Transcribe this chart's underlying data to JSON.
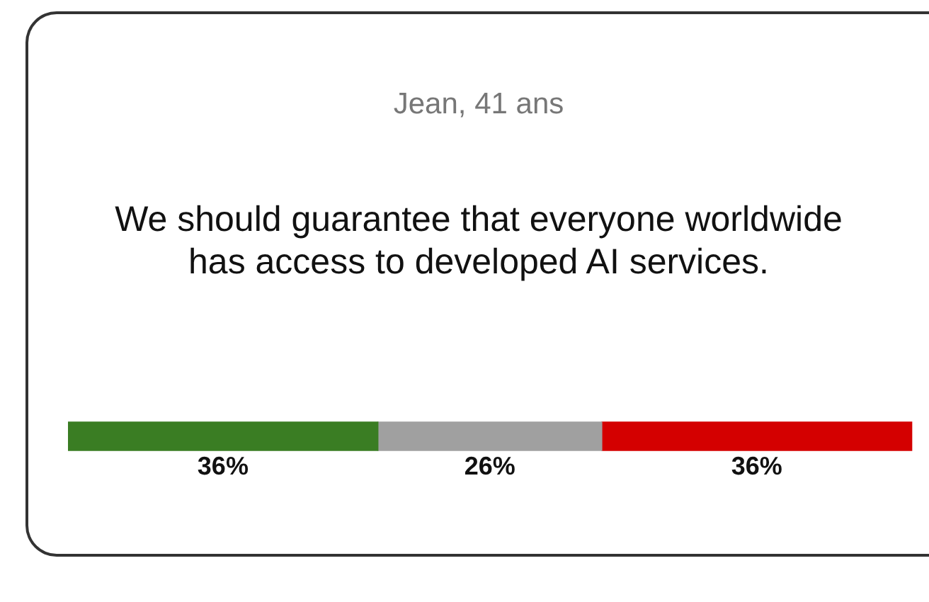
{
  "chart_data": {
    "type": "bar",
    "orientation": "horizontal",
    "stacked": true,
    "subtitle": "Jean, 41 ans",
    "title": "We should guarantee that everyone worldwide has access to developed AI services.",
    "categories": [
      null
    ],
    "series": [
      {
        "color": "#3a7d23",
        "values": [
          36
        ],
        "value_labels": [
          "36%"
        ]
      },
      {
        "color": "#a0a0a0",
        "values": [
          26
        ],
        "value_labels": [
          "26%"
        ]
      },
      {
        "color": "#d40000",
        "values": [
          36
        ],
        "value_labels": [
          "36%"
        ]
      }
    ]
  }
}
